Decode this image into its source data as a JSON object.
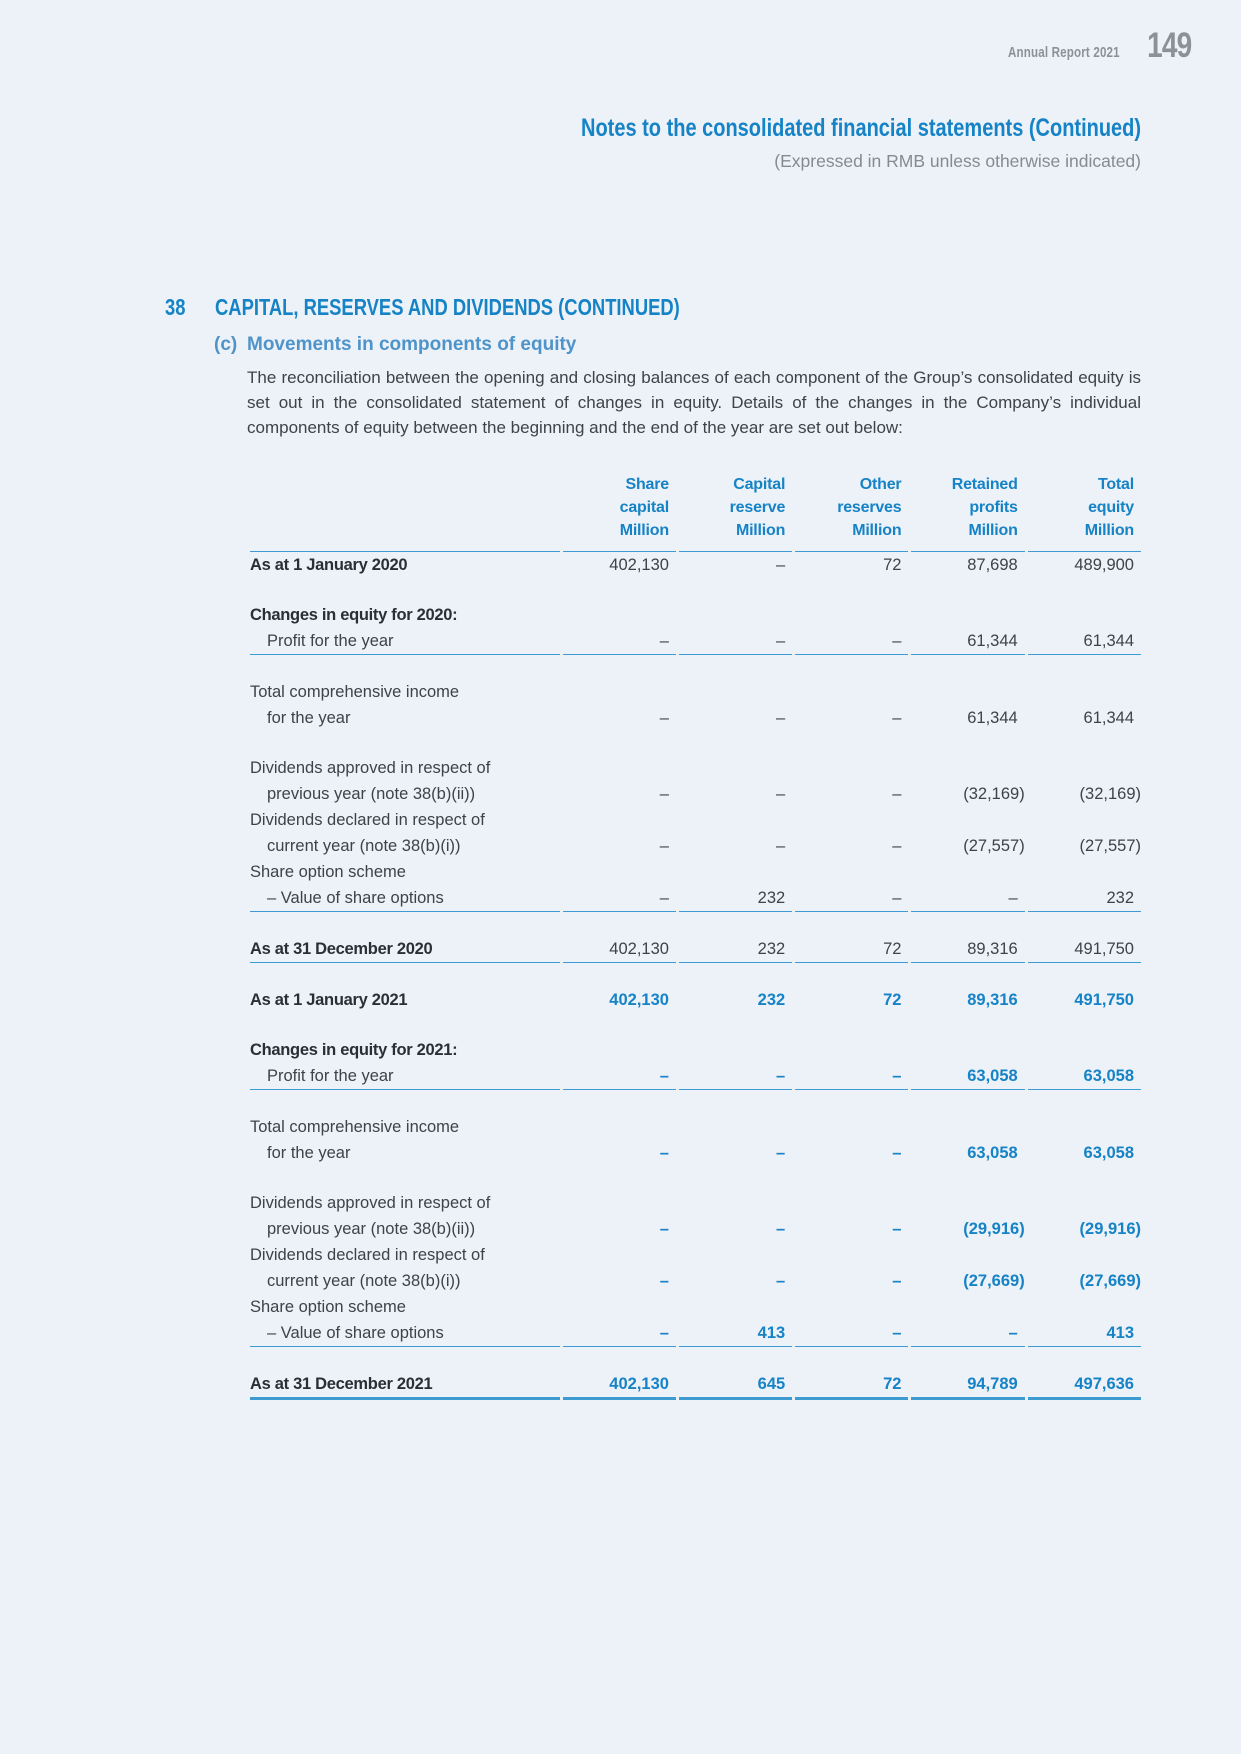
{
  "page": {
    "background": "#edf1f8",
    "accent_blue": "#1583c5",
    "accent_blue_light": "#4f94c9",
    "rule_blue": "#3d9bd2",
    "running_header": {
      "report_title": "Annual Report 2021",
      "page_number": "149"
    },
    "doc_header": {
      "title": "Notes to the consolidated financial statements (Continued)",
      "subtitle": "(Expressed in RMB unless otherwise indicated)"
    },
    "section": {
      "number": "38",
      "title": "CAPITAL, RESERVES AND DIVIDENDS (CONTINUED)"
    },
    "subsection": {
      "label": "(c)",
      "title": "Movements in components of equity",
      "paragraph": "The reconciliation between the opening and closing balances of each component of the Group’s consolidated equity is set out in the consolidated statement of changes in equity. Details of the changes in the Company’s individual components of equity between the beginning and the end of the year are set out below:"
    }
  },
  "table": {
    "columns": [
      {
        "lines": [
          "Share",
          "capital",
          "Million"
        ]
      },
      {
        "lines": [
          "Capital",
          "reserve",
          "Million"
        ]
      },
      {
        "lines": [
          "Other",
          "reserves",
          "Million"
        ]
      },
      {
        "lines": [
          "Retained",
          "profits",
          "Million"
        ]
      },
      {
        "lines": [
          "Total",
          "equity",
          "Million"
        ]
      }
    ],
    "rows": [
      {
        "lines": [
          {
            "text": "As at 1 January 2020",
            "indent": false
          }
        ],
        "bold": true,
        "accent": false,
        "values": [
          "402,130",
          "–",
          "72",
          "87,698",
          "489,900"
        ],
        "rule": "none",
        "spacer_before": false
      },
      {
        "lines": [
          {
            "text": "Changes in equity for 2020:",
            "indent": false
          }
        ],
        "bold": true,
        "accent": false,
        "values": [],
        "rule": "none",
        "spacer_before": true
      },
      {
        "lines": [
          {
            "text": "Profit for the year",
            "indent": true
          }
        ],
        "bold": false,
        "accent": false,
        "values": [
          "–",
          "–",
          "–",
          "61,344",
          "61,344"
        ],
        "rule": "thin",
        "spacer_before": false
      },
      {
        "lines": [
          {
            "text": "Total comprehensive income",
            "indent": false
          },
          {
            "text": "for the year",
            "indent": true
          }
        ],
        "bold": false,
        "accent": false,
        "values": [
          "–",
          "–",
          "–",
          "61,344",
          "61,344"
        ],
        "rule": "none",
        "spacer_before": true
      },
      {
        "lines": [
          {
            "text": "Dividends approved in respect of",
            "indent": false
          },
          {
            "text": "previous year (note 38(b)(ii))",
            "indent": true
          }
        ],
        "bold": false,
        "accent": false,
        "values": [
          "–",
          "–",
          "–",
          "(32,169)",
          "(32,169)"
        ],
        "rule": "none",
        "spacer_before": true
      },
      {
        "lines": [
          {
            "text": "Dividends declared in respect of",
            "indent": false
          },
          {
            "text": "current year (note 38(b)(i))",
            "indent": true
          }
        ],
        "bold": false,
        "accent": false,
        "values": [
          "–",
          "–",
          "–",
          "(27,557)",
          "(27,557)"
        ],
        "rule": "none",
        "spacer_before": false
      },
      {
        "lines": [
          {
            "text": "Share option scheme",
            "indent": false
          },
          {
            "text": "– Value of share options",
            "indent": true
          }
        ],
        "bold": false,
        "accent": false,
        "values": [
          "–",
          "232",
          "–",
          "–",
          "232"
        ],
        "rule": "thin",
        "spacer_before": false
      },
      {
        "lines": [
          {
            "text": "As at 31 December 2020",
            "indent": false
          }
        ],
        "bold": true,
        "accent": false,
        "values": [
          "402,130",
          "232",
          "72",
          "89,316",
          "491,750"
        ],
        "rule": "thin",
        "spacer_before": true
      },
      {
        "lines": [
          {
            "text": "As at 1 January 2021",
            "indent": false
          }
        ],
        "bold": true,
        "accent": true,
        "values": [
          "402,130",
          "232",
          "72",
          "89,316",
          "491,750"
        ],
        "rule": "none",
        "spacer_before": true
      },
      {
        "lines": [
          {
            "text": "Changes in equity for 2021:",
            "indent": false
          }
        ],
        "bold": true,
        "accent": true,
        "values": [],
        "rule": "none",
        "spacer_before": true
      },
      {
        "lines": [
          {
            "text": "Profit for the year",
            "indent": true
          }
        ],
        "bold": false,
        "accent": true,
        "values": [
          "–",
          "–",
          "–",
          "63,058",
          "63,058"
        ],
        "rule": "thin",
        "spacer_before": false
      },
      {
        "lines": [
          {
            "text": "Total comprehensive income",
            "indent": false
          },
          {
            "text": "for the year",
            "indent": true
          }
        ],
        "bold": false,
        "accent": true,
        "values": [
          "–",
          "–",
          "–",
          "63,058",
          "63,058"
        ],
        "rule": "none",
        "spacer_before": true
      },
      {
        "lines": [
          {
            "text": "Dividends approved in respect of",
            "indent": false
          },
          {
            "text": "previous year (note 38(b)(ii))",
            "indent": true
          }
        ],
        "bold": false,
        "accent": true,
        "values": [
          "–",
          "–",
          "–",
          "(29,916)",
          "(29,916)"
        ],
        "rule": "none",
        "spacer_before": true
      },
      {
        "lines": [
          {
            "text": "Dividends declared in respect of",
            "indent": false
          },
          {
            "text": "current year (note 38(b)(i))",
            "indent": true
          }
        ],
        "bold": false,
        "accent": true,
        "values": [
          "–",
          "–",
          "–",
          "(27,669)",
          "(27,669)"
        ],
        "rule": "none",
        "spacer_before": false
      },
      {
        "lines": [
          {
            "text": "Share option scheme",
            "indent": false
          },
          {
            "text": "– Value of share options",
            "indent": true
          }
        ],
        "bold": false,
        "accent": true,
        "values": [
          "–",
          "413",
          "–",
          "–",
          "413"
        ],
        "rule": "thin",
        "spacer_before": false
      },
      {
        "lines": [
          {
            "text": "As at 31 December 2021",
            "indent": false
          }
        ],
        "bold": true,
        "accent": true,
        "values": [
          "402,130",
          "645",
          "72",
          "94,789",
          "497,636"
        ],
        "rule": "thick",
        "spacer_before": true
      }
    ]
  }
}
